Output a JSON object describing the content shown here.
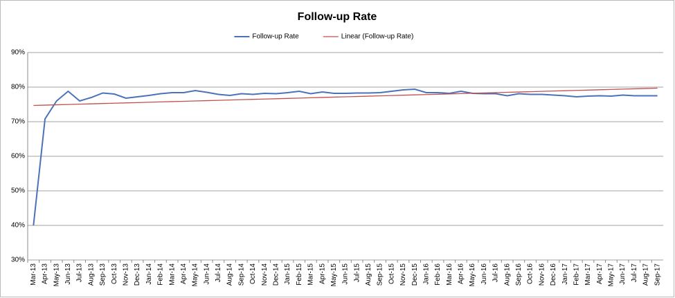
{
  "chart_data": {
    "type": "line",
    "title": "Follow-up Rate",
    "categories": [
      "Mar-13",
      "Apr-13",
      "May-13",
      "Jun-13",
      "Jul-13",
      "Aug-13",
      "Sep-13",
      "Oct-13",
      "Nov-13",
      "Dec-13",
      "Jan-14",
      "Feb-14",
      "Mar-14",
      "Apr-14",
      "May-14",
      "Jun-14",
      "Jul-14",
      "Aug-14",
      "Sep-14",
      "Oct-14",
      "Nov-14",
      "Dec-14",
      "Jan-15",
      "Feb-15",
      "Mar-15",
      "Apr-15",
      "May-15",
      "Jun-15",
      "Jul-15",
      "Aug-15",
      "Sep-15",
      "Oct-15",
      "Nov-15",
      "Dec-15",
      "Jan-16",
      "Feb-16",
      "Mar-16",
      "Apr-16",
      "May-16",
      "Jun-16",
      "Jul-16",
      "Aug-16",
      "Sep-16",
      "Oct-16",
      "Nov-16",
      "Dec-16",
      "Jan-17",
      "Feb-17",
      "Mar-17",
      "Apr-17",
      "May-17",
      "Jun-17",
      "Jul-17",
      "Aug-17",
      "Sep-17"
    ],
    "series": [
      {
        "name": "Follow-up Rate",
        "color": "#4a72b8",
        "values": [
          40,
          70.8,
          76,
          78.8,
          76,
          77,
          78.3,
          78,
          76.8,
          77.2,
          77.6,
          78.1,
          78.4,
          78.4,
          79,
          78.5,
          77.9,
          77.6,
          78.1,
          77.9,
          78.2,
          78.1,
          78.4,
          78.8,
          78.1,
          78.6,
          78.2,
          78.2,
          78.3,
          78.3,
          78.4,
          78.8,
          79.2,
          79.4,
          78.4,
          78.4,
          78.2,
          78.8,
          78.2,
          78.1,
          78.1,
          77.5,
          78.1,
          77.9,
          77.9,
          77.7,
          77.5,
          77.2,
          77.4,
          77.5,
          77.4,
          77.7,
          77.5,
          77.5,
          77.5
        ]
      },
      {
        "name": "Linear (Follow-up Rate)",
        "color": "#c0504d",
        "values": [
          74.7,
          74.79,
          74.89,
          74.98,
          75.07,
          75.16,
          75.26,
          75.35,
          75.44,
          75.53,
          75.63,
          75.72,
          75.81,
          75.9,
          76,
          76.09,
          76.18,
          76.27,
          76.37,
          76.46,
          76.55,
          76.64,
          76.74,
          76.83,
          76.92,
          77.01,
          77.11,
          77.2,
          77.29,
          77.39,
          77.48,
          77.57,
          77.66,
          77.76,
          77.85,
          77.94,
          78.03,
          78.13,
          78.22,
          78.31,
          78.4,
          78.5,
          78.59,
          78.68,
          78.77,
          78.87,
          78.96,
          79.05,
          79.14,
          79.24,
          79.33,
          79.42,
          79.51,
          79.61,
          79.7
        ]
      }
    ],
    "ylim": [
      30,
      90
    ],
    "yticks": [
      {
        "value": 30,
        "label": "30%"
      },
      {
        "value": 40,
        "label": "40%"
      },
      {
        "value": 50,
        "label": "50%"
      },
      {
        "value": 60,
        "label": "60%"
      },
      {
        "value": 70,
        "label": "70%"
      },
      {
        "value": 80,
        "label": "80%"
      },
      {
        "value": 90,
        "label": "90%"
      }
    ],
    "grid": true,
    "legend": "top"
  }
}
